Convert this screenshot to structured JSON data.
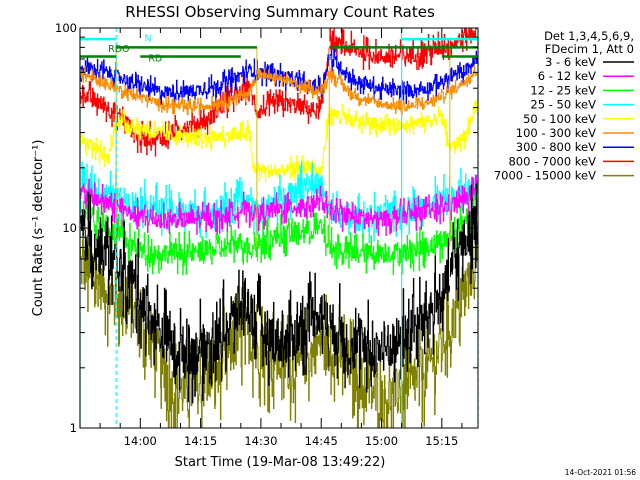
{
  "chart_data": {
    "type": "line",
    "title": "RHESSI Observing Summary Count Rates",
    "xlabel": "Start Time (19-Mar-08 13:49:22)",
    "ylabel": "Count Rate (s⁻¹ detector⁻¹)",
    "y_scale": "log",
    "ylim": [
      1,
      100
    ],
    "y_ticks": [
      {
        "v": 1,
        "label": "1"
      },
      {
        "v": 10,
        "label": "10"
      },
      {
        "v": 100,
        "label": "100"
      }
    ],
    "x_range_min": [
      -4,
      95
    ],
    "x_ticks": [
      {
        "m": 11,
        "label": "14:00"
      },
      {
        "m": 26,
        "label": "14:15"
      },
      {
        "m": 41,
        "label": "14:30"
      },
      {
        "m": 56,
        "label": "14:45"
      },
      {
        "m": 71,
        "label": "15:00"
      },
      {
        "m": 86,
        "label": "15:15"
      }
    ],
    "legend_header": [
      "Det 1,3,4,5,6,9,",
      "FDecim 1, Att 0"
    ],
    "series": [
      {
        "name": "3 - 6 keV",
        "color": "#000000",
        "noise": 0.12,
        "points": [
          [
            -4,
            10
          ],
          [
            0,
            8
          ],
          [
            5,
            6.5
          ],
          [
            10,
            5
          ],
          [
            15,
            3.2
          ],
          [
            20,
            2.5
          ],
          [
            25,
            2.4
          ],
          [
            30,
            2.7
          ],
          [
            34,
            3.5
          ],
          [
            37,
            4.5
          ],
          [
            39,
            3.5
          ],
          [
            42,
            3
          ],
          [
            47,
            2.6
          ],
          [
            50,
            3
          ],
          [
            54,
            3.7
          ],
          [
            56,
            3.9
          ],
          [
            58,
            3.3
          ],
          [
            63,
            2.6
          ],
          [
            68,
            2.4
          ],
          [
            72,
            2.5
          ],
          [
            76,
            2.8
          ],
          [
            80,
            3.3
          ],
          [
            86,
            4.5
          ],
          [
            90,
            7.5
          ],
          [
            95,
            11
          ]
        ]
      },
      {
        "name": "6 - 12 keV",
        "color": "#ff00ff",
        "noise": 0.04,
        "points": [
          [
            -4,
            15
          ],
          [
            0,
            14
          ],
          [
            8,
            12
          ],
          [
            14,
            11
          ],
          [
            20,
            11
          ],
          [
            26,
            11
          ],
          [
            32,
            11.5
          ],
          [
            37,
            12.5
          ],
          [
            40,
            11.8
          ],
          [
            46,
            12.5
          ],
          [
            52,
            13
          ],
          [
            56,
            13.5
          ],
          [
            58,
            12
          ],
          [
            64,
            11.5
          ],
          [
            70,
            11
          ],
          [
            76,
            11.5
          ],
          [
            82,
            12
          ],
          [
            88,
            13
          ],
          [
            92,
            14
          ],
          [
            95,
            15.5
          ]
        ]
      },
      {
        "name": "12 - 25 keV",
        "color": "#00ff00",
        "noise": 0.05,
        "points": [
          [
            -4,
            13
          ],
          [
            0,
            11
          ],
          [
            6,
            9
          ],
          [
            12,
            7.5
          ],
          [
            18,
            7.5
          ],
          [
            24,
            7.5
          ],
          [
            30,
            7.8
          ],
          [
            36,
            8.5
          ],
          [
            38,
            8
          ],
          [
            44,
            9
          ],
          [
            50,
            9.5
          ],
          [
            56,
            10
          ],
          [
            58,
            8
          ],
          [
            64,
            7.5
          ],
          [
            70,
            7.5
          ],
          [
            76,
            7.5
          ],
          [
            82,
            8
          ],
          [
            88,
            9
          ],
          [
            92,
            11
          ],
          [
            95,
            13
          ]
        ]
      },
      {
        "name": "25 - 50 keV",
        "color": "#00ffff",
        "noise": 0.06,
        "points": [
          [
            -4,
            16
          ],
          [
            0,
            15
          ],
          [
            6,
            14
          ],
          [
            12,
            13
          ],
          [
            20,
            12
          ],
          [
            28,
            12
          ],
          [
            34,
            13
          ],
          [
            38,
            13.5
          ],
          [
            40,
            12
          ],
          [
            46,
            14
          ],
          [
            50,
            16
          ],
          [
            53,
            17
          ],
          [
            56,
            16
          ],
          [
            58,
            12
          ],
          [
            64,
            11
          ],
          [
            70,
            11.5
          ],
          [
            76,
            12
          ],
          [
            82,
            13
          ],
          [
            88,
            14
          ],
          [
            92,
            15
          ],
          [
            95,
            17
          ]
        ]
      },
      {
        "name": "50 - 100 keV",
        "color": "#ffff00",
        "noise": 0.03,
        "points": [
          [
            -4,
            28
          ],
          [
            0,
            25
          ],
          [
            3,
            22
          ],
          [
            5,
            35
          ],
          [
            10,
            32
          ],
          [
            18,
            29
          ],
          [
            25,
            28
          ],
          [
            30,
            28.5
          ],
          [
            35,
            29
          ],
          [
            38,
            30
          ],
          [
            39,
            20
          ],
          [
            44,
            19
          ],
          [
            50,
            20
          ],
          [
            53,
            20.5
          ],
          [
            56,
            19
          ],
          [
            58,
            38
          ],
          [
            64,
            34
          ],
          [
            70,
            33
          ],
          [
            76,
            33
          ],
          [
            82,
            34
          ],
          [
            86,
            36
          ],
          [
            88,
            25
          ],
          [
            92,
            29
          ],
          [
            95,
            45
          ]
        ]
      },
      {
        "name": "100 - 300 keV",
        "color": "#ff8c00",
        "noise": 0.02,
        "points": [
          [
            -4,
            60
          ],
          [
            0,
            55
          ],
          [
            5,
            50
          ],
          [
            10,
            46
          ],
          [
            16,
            42
          ],
          [
            22,
            40
          ],
          [
            28,
            41
          ],
          [
            34,
            44
          ],
          [
            38,
            48
          ],
          [
            40,
            58
          ],
          [
            46,
            56
          ],
          [
            52,
            50
          ],
          [
            56,
            48
          ],
          [
            58,
            60
          ],
          [
            64,
            46
          ],
          [
            70,
            42
          ],
          [
            76,
            40
          ],
          [
            82,
            42
          ],
          [
            88,
            48
          ],
          [
            92,
            55
          ],
          [
            95,
            62
          ]
        ]
      },
      {
        "name": "300 - 800 keV",
        "color": "#0000ff",
        "noise": 0.03,
        "points": [
          [
            -4,
            62
          ],
          [
            0,
            62
          ],
          [
            3,
            60
          ],
          [
            5,
            58
          ],
          [
            10,
            52
          ],
          [
            16,
            48
          ],
          [
            22,
            48
          ],
          [
            28,
            50
          ],
          [
            34,
            55
          ],
          [
            38,
            62
          ],
          [
            40,
            60
          ],
          [
            46,
            58
          ],
          [
            52,
            52
          ],
          [
            56,
            50
          ],
          [
            58,
            72
          ],
          [
            64,
            55
          ],
          [
            70,
            50
          ],
          [
            76,
            48
          ],
          [
            82,
            50
          ],
          [
            88,
            56
          ],
          [
            92,
            62
          ],
          [
            95,
            70
          ]
        ]
      },
      {
        "name": "800 - 7000 keV",
        "color": "#ff0000",
        "noise": 0.04,
        "points": [
          [
            -4,
            48
          ],
          [
            0,
            43
          ],
          [
            5,
            38
          ],
          [
            8,
            33
          ],
          [
            10,
            28
          ],
          [
            16,
            28
          ],
          [
            22,
            32
          ],
          [
            28,
            35
          ],
          [
            34,
            45
          ],
          [
            38,
            50
          ],
          [
            40,
            38
          ],
          [
            46,
            42
          ],
          [
            52,
            40
          ],
          [
            56,
            38
          ],
          [
            58,
            85
          ],
          [
            64,
            78
          ],
          [
            70,
            72
          ],
          [
            76,
            72
          ],
          [
            82,
            76
          ],
          [
            88,
            82
          ],
          [
            92,
            92
          ],
          [
            95,
            100
          ]
        ]
      },
      {
        "name": "7000 - 15000 keV",
        "color": "#808000",
        "noise": 0.13,
        "points": [
          [
            -4,
            6.5
          ],
          [
            0,
            5.5
          ],
          [
            5,
            4.5
          ],
          [
            10,
            3.5
          ],
          [
            14,
            2.8
          ],
          [
            18,
            1.6
          ],
          [
            22,
            1.5
          ],
          [
            26,
            1.6
          ],
          [
            30,
            2
          ],
          [
            34,
            2.5
          ],
          [
            37,
            3
          ],
          [
            40,
            2.5
          ],
          [
            44,
            2.2
          ],
          [
            50,
            2
          ],
          [
            54,
            2.4
          ],
          [
            56,
            2.8
          ],
          [
            58,
            2.5
          ],
          [
            62,
            2.2
          ],
          [
            66,
            1.6
          ],
          [
            72,
            1.4
          ],
          [
            78,
            1.6
          ],
          [
            84,
            2.2
          ],
          [
            88,
            3.2
          ],
          [
            92,
            5
          ],
          [
            95,
            7.5
          ]
        ]
      }
    ],
    "flag_labels": [
      {
        "text": "RDO",
        "color": "#008000"
      },
      {
        "text": "RD",
        "color": "#008000"
      },
      {
        "text": "N",
        "color": "#00ffff"
      }
    ],
    "flag_lines": [
      {
        "color": "#00ffff",
        "y": 88,
        "segments": [
          [
            -4,
            5
          ],
          [
            76,
            95
          ]
        ]
      },
      {
        "color": "#008000",
        "y": 80,
        "segments": [
          [
            5,
            40
          ],
          [
            58,
            95
          ]
        ]
      },
      {
        "color": "#008000",
        "y": 72,
        "segments": [
          [
            -4,
            5
          ],
          [
            11,
            36
          ],
          [
            86,
            95
          ]
        ]
      }
    ],
    "saa_bounds": [
      {
        "m": -4,
        "style": "solid"
      },
      {
        "m": 5,
        "style": "dashed"
      },
      {
        "m": 76,
        "style": "solid"
      },
      {
        "m": 95,
        "style": "dashed"
      }
    ],
    "gap_markers": [
      {
        "m": 5
      },
      {
        "m": 40
      },
      {
        "m": 58
      },
      {
        "m": 88
      }
    ],
    "footer": "14-Oct-2021 01:56"
  }
}
